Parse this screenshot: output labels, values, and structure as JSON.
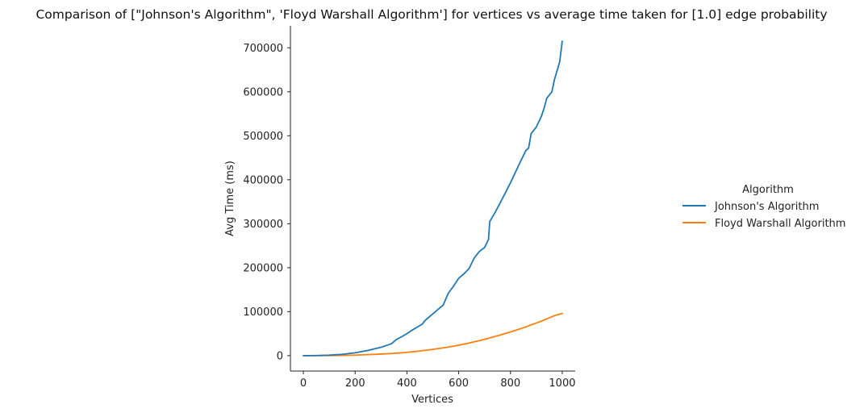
{
  "chart_data": {
    "type": "line",
    "title": "Comparison of [\"Johnson's Algorithm\", 'Floyd Warshall Algorithm'] for vertices vs average time taken for [1.0] edge probability",
    "xlabel": "Vertices",
    "ylabel": "Avg Time (ms)",
    "xlim": [
      -50,
      1050
    ],
    "ylim": [
      -35000,
      750000
    ],
    "xticks": [
      0,
      200,
      400,
      600,
      800,
      1000
    ],
    "yticks": [
      0,
      100000,
      200000,
      300000,
      400000,
      500000,
      600000,
      700000
    ],
    "grid": false,
    "legend": {
      "title": "Algorithm",
      "placement": "outside-right"
    },
    "x": [
      0,
      50,
      100,
      150,
      200,
      250,
      300,
      340,
      360,
      380,
      400,
      420,
      440,
      460,
      470,
      500,
      540,
      560,
      580,
      600,
      620,
      640,
      660,
      680,
      700,
      715,
      720,
      740,
      760,
      780,
      800,
      820,
      840,
      860,
      870,
      880,
      900,
      920,
      930,
      940,
      960,
      970,
      990,
      1000
    ],
    "series": [
      {
        "name": "Johnson's Algorithm",
        "color": "#1f77b4",
        "values": [
          0,
          300,
          1200,
          3000,
          6500,
          12000,
          19000,
          27000,
          37000,
          43000,
          50000,
          58000,
          65000,
          72000,
          80000,
          95000,
          115000,
          142000,
          158000,
          176000,
          186000,
          198000,
          222000,
          237000,
          246000,
          264000,
          305000,
          325000,
          347000,
          370000,
          393000,
          418000,
          443000,
          467000,
          472000,
          505000,
          520000,
          545000,
          563000,
          585000,
          600000,
          628000,
          668000,
          715000
        ]
      },
      {
        "name": "Floyd Warshall Algorithm",
        "color": "#ff7f0e",
        "values": [
          0,
          30,
          150,
          500,
          1200,
          2400,
          3600,
          4900,
          5700,
          6500,
          7600,
          8700,
          9900,
          11300,
          12000,
          14300,
          17800,
          19600,
          21700,
          23800,
          26200,
          28700,
          31500,
          34300,
          37300,
          39500,
          40500,
          43700,
          46900,
          50500,
          54000,
          57700,
          61600,
          65500,
          67800,
          70000,
          74300,
          78700,
          81000,
          83600,
          88400,
          91000,
          94500,
          96000
        ]
      }
    ]
  }
}
